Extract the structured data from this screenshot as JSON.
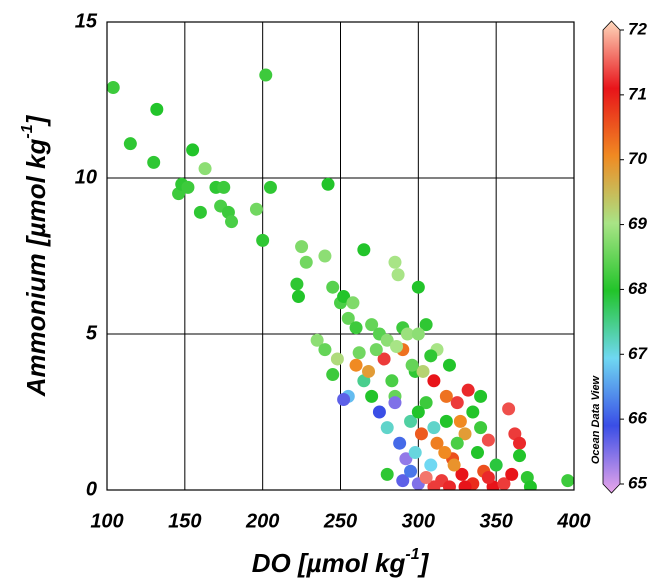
{
  "chart_data": {
    "type": "scatter",
    "xlabel": [
      "DO [µmol kg",
      "-1",
      "]"
    ],
    "ylabel": [
      "Ammonium [µmol kg",
      "-1",
      "]"
    ],
    "watermark": "Ocean Data View",
    "xlim": [
      100,
      400
    ],
    "xticks": [
      100,
      150,
      200,
      250,
      300,
      350,
      400
    ],
    "ylim": [
      0,
      15
    ],
    "yticks": [
      0,
      5,
      10,
      15
    ],
    "grid": true,
    "colorbar": {
      "lim": [
        65,
        72
      ],
      "ticks": [
        65,
        66,
        67,
        68,
        69,
        70,
        71,
        72
      ],
      "colors": [
        "#e9a6ea",
        "#3a4ee6",
        "#6fd8f2",
        "#22c42a",
        "#a8e486",
        "#f08a22",
        "#e8141a",
        "#fed8bc"
      ]
    },
    "series": [
      {
        "x": [
          104,
          115,
          130,
          132,
          146,
          148,
          152,
          155,
          160,
          163,
          170,
          173,
          175,
          178,
          180,
          196,
          200,
          202,
          205,
          222,
          223,
          225,
          228,
          242,
          240,
          245,
          250,
          252,
          255,
          258,
          265,
          260,
          262,
          270,
          275,
          280,
          285,
          287,
          290,
          300,
          305,
          235,
          240,
          245,
          248,
          255,
          252,
          260,
          265,
          268,
          270,
          275,
          278,
          280,
          285,
          288,
          290,
          292,
          295,
          298,
          300,
          302,
          305,
          308,
          310,
          312,
          315,
          318,
          320,
          322,
          325,
          328,
          330,
          332,
          335,
          338,
          340,
          342,
          345,
          348,
          350,
          355,
          358,
          362,
          365,
          365,
          370,
          372,
          396,
          310,
          320,
          330,
          290,
          295,
          298,
          305,
          312,
          318,
          300,
          285,
          310,
          325,
          335,
          345,
          280,
          283,
          273,
          303,
          308,
          340,
          360,
          323,
          317,
          327,
          286,
          293,
          300,
          296
        ],
        "y": [
          12.9,
          11.1,
          10.5,
          12.2,
          9.5,
          9.8,
          9.7,
          10.9,
          8.9,
          10.3,
          9.7,
          9.1,
          9.7,
          8.9,
          8.6,
          9.0,
          8.0,
          13.3,
          9.7,
          6.6,
          6.2,
          7.8,
          7.3,
          9.8,
          7.5,
          6.5,
          6.0,
          6.2,
          5.5,
          6.0,
          7.7,
          5.2,
          4.4,
          5.3,
          5.0,
          4.8,
          7.3,
          6.9,
          5.2,
          6.5,
          5.3,
          4.8,
          4.5,
          3.7,
          4.2,
          3.0,
          2.9,
          4.0,
          3.5,
          3.8,
          3.0,
          2.5,
          4.2,
          2.0,
          3.0,
          1.5,
          4.5,
          1.0,
          2.2,
          3.8,
          0.2,
          1.8,
          2.8,
          0.8,
          3.5,
          1.5,
          0.3,
          2.2,
          4.0,
          1.0,
          2.8,
          0.5,
          1.8,
          3.2,
          0.2,
          1.2,
          2.0,
          0.6,
          1.6,
          0.1,
          0.8,
          0.2,
          2.6,
          1.8,
          1.5,
          1.1,
          0.4,
          0.1,
          0.3,
          0.1,
          0.1,
          0.1,
          0.3,
          0.6,
          1.2,
          0.4,
          4.5,
          3.0,
          2.5,
          2.8,
          2.0,
          1.5,
          2.5,
          0.4,
          0.5,
          3.5,
          4.5,
          3.8,
          4.3,
          3.0,
          0.5,
          0.8,
          1.2,
          2.2,
          4.6,
          5.0,
          5.0,
          4.0
        ],
        "z": [
          68.2,
          68.1,
          68.1,
          68.0,
          68.2,
          68.1,
          68.2,
          68.0,
          68.1,
          68.8,
          68.1,
          68.3,
          68.2,
          68.2,
          68.3,
          68.6,
          68.1,
          68.2,
          68.1,
          68.1,
          68.0,
          68.7,
          68.6,
          68.0,
          68.8,
          68.4,
          68.3,
          68.0,
          68.5,
          68.7,
          68.0,
          68.2,
          68.6,
          68.5,
          68.4,
          68.8,
          69.0,
          69.0,
          68.2,
          68.0,
          68.1,
          68.8,
          68.5,
          68.2,
          69.1,
          66.8,
          65.8,
          70.0,
          67.5,
          69.8,
          68.0,
          66.0,
          71.2,
          67.2,
          68.5,
          66.2,
          70.2,
          65.5,
          67.4,
          68.1,
          65.6,
          70.4,
          68.2,
          67.0,
          71.0,
          70.1,
          71.2,
          68.0,
          68.0,
          70.5,
          71.2,
          71.0,
          69.8,
          71.1,
          70.8,
          68.0,
          68.2,
          70.5,
          71.3,
          71.0,
          67.9,
          71.2,
          71.3,
          71.2,
          71.1,
          68.0,
          68.1,
          68.0,
          68.2,
          71.2,
          71.1,
          71.0,
          65.8,
          66.3,
          67.1,
          71.5,
          69.0,
          70.2,
          68.0,
          65.6,
          67.2,
          68.3,
          68.0,
          71.1,
          68.1,
          68.3,
          68.6,
          69.2,
          68.1,
          68.0,
          71.0,
          69.9,
          70.0,
          70.0,
          69.0,
          68.9,
          68.8,
          68.5
        ]
      }
    ]
  }
}
